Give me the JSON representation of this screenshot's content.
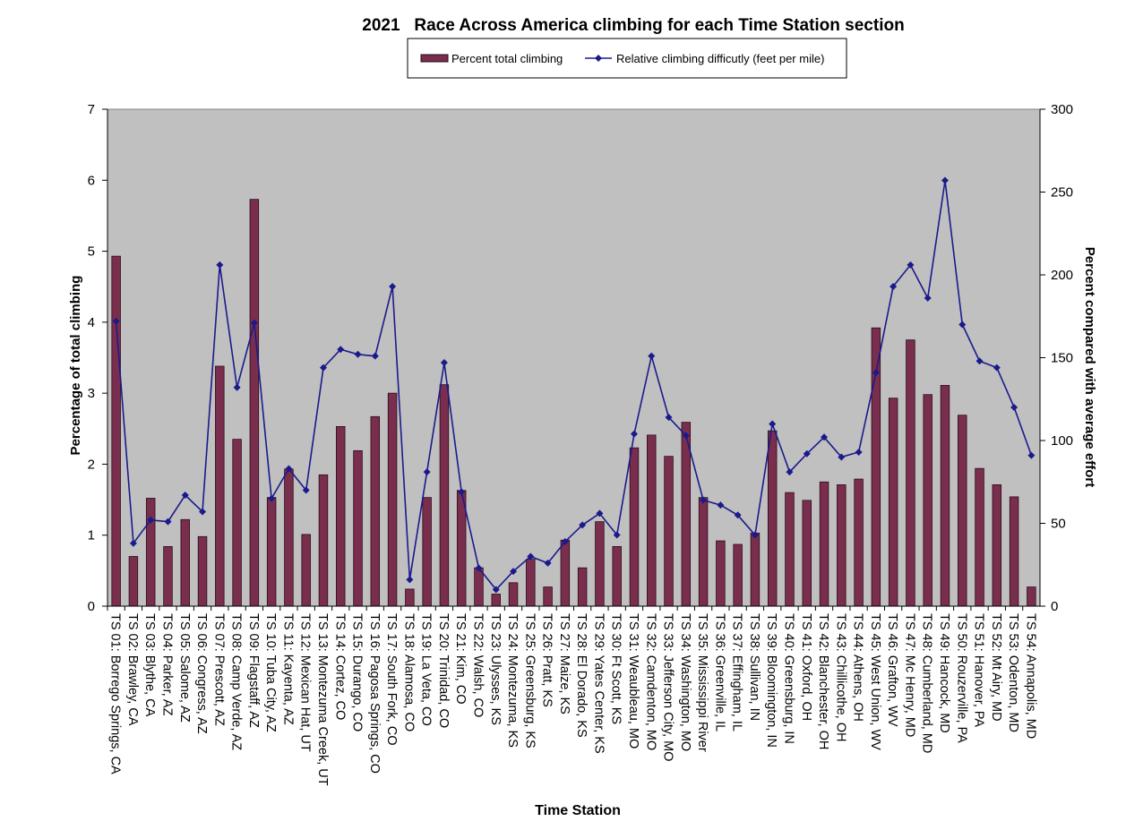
{
  "chart_data": {
    "type": "bar",
    "title": "2021   Race Across America climbing for each Time Station section",
    "xlabel": "Time Station",
    "ylabel": "Percentage of total climbing",
    "y2label": "Percent compared with average effort",
    "ylim": [
      0,
      7
    ],
    "y2lim": [
      0,
      300
    ],
    "yticks": [
      0,
      1,
      2,
      3,
      4,
      5,
      6,
      7
    ],
    "y2ticks": [
      0,
      50,
      100,
      150,
      200,
      250,
      300
    ],
    "legend": {
      "position": "top-center",
      "bar_label": "Percent total climbing",
      "line_label": "Relative climbing difficutly (feet per mile)"
    },
    "colors": {
      "plot_bg": "#c0c0c0",
      "bar_fill": "#7a2e4e",
      "bar_stroke": "#2a0a18",
      "line": "#1a1a8c"
    },
    "categories": [
      "TS 01: Borrego Springs, CA",
      "TS 02: Brawley, CA",
      "TS 03: Blythe, CA",
      "TS 04: Parker, AZ",
      "TS 05: Salome, AZ",
      "TS 06: Congress, AZ",
      "TS 07: Prescott, AZ",
      "TS 08: Camp Verde, AZ",
      "TS 09: Flagstaff, AZ",
      "TS 10: Tuba City, AZ",
      "TS 11: Kayenta, AZ",
      "TS 12: Mexican Hat, UT",
      "TS 13: Montezuma Creek, UT",
      "TS 14: Cortez, CO",
      "TS 15: Durango, CO",
      "TS 16: Pagosa Springs, CO",
      "TS 17: South Fork, CO",
      "TS 18: Alamosa, CO",
      "TS 19: La Veta, CO",
      "TS 20: Trinidad, CO",
      "TS 21: Kim, CO",
      "TS 22: Walsh, CO",
      "TS 23: Ulysses, KS",
      "TS 24: Montezuma, KS",
      "TS 25: Greensburg, KS",
      "TS 26: Pratt, KS",
      "TS 27: Maize, KS",
      "TS 28: El Dorado, KS",
      "TS 29: Yates Center, KS",
      "TS 30: Ft Scott, KS",
      "TS 31: Weaubleau, MO",
      "TS 32: Camdenton, MO",
      "TS 33: Jefferson City, MO",
      "TS 34: Washington, MO",
      "TS 35: Mississippi River",
      "TS 36: Greenville, IL",
      "TS 37: Effingham, IL",
      "TS 38: Sullivan, IN",
      "TS 39: Bloomington, IN",
      "TS 40: Greensburg, IN",
      "TS 41: Oxford, OH",
      "TS 42: Blanchester, OH",
      "TS 43: Chillicothe, OH",
      "TS 44: Athens, OH",
      "TS 45: West Union, WV",
      "TS 46: Grafton, WV",
      "TS 47: Mc Henry, MD",
      "TS 48: Cumberland, MD",
      "TS 49: Hancock, MD",
      "TS 50: Rouzerville, PA",
      "TS 51: Hanover, PA",
      "TS 52: Mt Airy, MD",
      "TS 53: Odenton, MD",
      "TS 54: Annapolis, MD"
    ],
    "series": [
      {
        "name": "Percent total climbing",
        "type": "bar",
        "axis": "left",
        "values": [
          4.93,
          0.7,
          1.52,
          0.84,
          1.22,
          0.98,
          3.38,
          2.35,
          5.73,
          1.53,
          1.93,
          1.01,
          1.85,
          2.53,
          2.19,
          2.67,
          3.0,
          0.24,
          1.53,
          3.12,
          1.63,
          0.54,
          0.17,
          0.33,
          0.66,
          0.27,
          0.93,
          0.54,
          1.19,
          0.84,
          2.23,
          2.41,
          2.11,
          2.59,
          1.53,
          0.92,
          0.87,
          1.03,
          2.47,
          1.6,
          1.49,
          1.75,
          1.71,
          1.79,
          3.92,
          2.93,
          3.75,
          2.98,
          3.11,
          2.69,
          1.94,
          1.71,
          1.54,
          0.27
        ]
      },
      {
        "name": "Relative climbing difficutly (feet per mile)",
        "type": "line",
        "axis": "right",
        "values": [
          172,
          38,
          52,
          51,
          67,
          57,
          206,
          132,
          171,
          65,
          83,
          70,
          144,
          155,
          152,
          151,
          193,
          16,
          81,
          147,
          69,
          23,
          10,
          21,
          30,
          26,
          39,
          49,
          56,
          43,
          104,
          151,
          114,
          103,
          64,
          61,
          55,
          43,
          110,
          81,
          92,
          102,
          90,
          93,
          141,
          193,
          206,
          186,
          257,
          170,
          148,
          144,
          120,
          91
        ]
      }
    ]
  }
}
